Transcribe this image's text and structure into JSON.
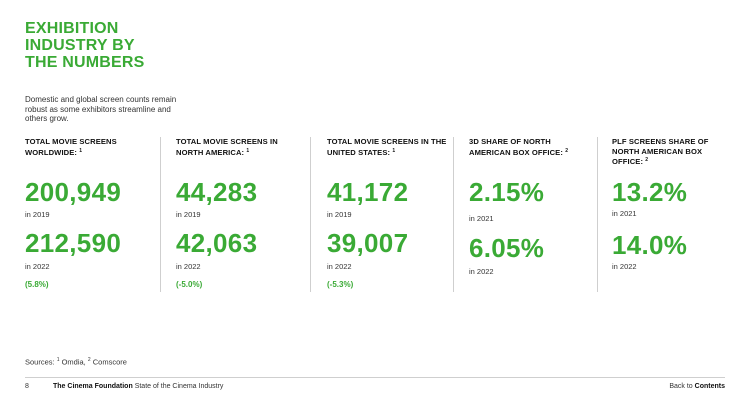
{
  "title_lines": [
    "EXHIBITION",
    "INDUSTRY BY",
    "THE NUMBERS"
  ],
  "intro": "Domestic and global screen counts remain robust as some exhibitors streamline and others grow.",
  "stats": [
    {
      "heading": "TOTAL MOVIE SCREENS WORLDWIDE:",
      "note": "1",
      "value_1": "200,949",
      "year_1": "in 2019",
      "value_2": "212,590",
      "year_2": "in 2022",
      "change": "(5.8%)"
    },
    {
      "heading": "TOTAL MOVIE SCREENS IN NORTH AMERICA:",
      "note": "1",
      "value_1": "44,283",
      "year_1": "in 2019",
      "value_2": "42,063",
      "year_2": "in 2022",
      "change": "(-5.0%)"
    },
    {
      "heading": "TOTAL MOVIE SCREENS IN THE UNITED STATES:",
      "note": "1",
      "value_1": "41,172",
      "year_1": "in 2019",
      "value_2": "39,007",
      "year_2": "in 2022",
      "change": "(-5.3%)"
    },
    {
      "heading": "3D SHARE OF NORTH AMERICAN BOX OFFICE:",
      "note": "2",
      "value_1": "2.15%",
      "year_1": "in 2021",
      "value_2": "6.05%",
      "year_2": "in 2022"
    },
    {
      "heading": "PLF SCREENS SHARE OF NORTH AMERICAN BOX OFFICE:",
      "note": "2",
      "value_1": "13.2%",
      "year_1": "in 2021",
      "value_2": "14.0%",
      "year_2": "in 2022"
    }
  ],
  "sources": {
    "label": "Sources:",
    "note_1": "1",
    "source_1": "Omdia,",
    "note_2": "2",
    "source_2": "Comscore"
  },
  "footer": {
    "page_number": "8",
    "org": "The Cinema Foundation",
    "publication": "State of the Cinema Industry",
    "back_prefix": "Back to",
    "back_target": "Contents"
  },
  "colors": {
    "accent": "#3aaa35",
    "text": "#222222",
    "divider": "#cfcfcf"
  }
}
